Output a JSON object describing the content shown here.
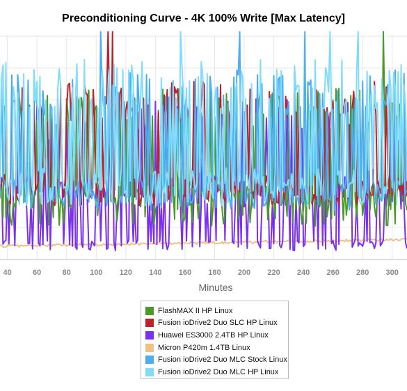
{
  "chart_data": {
    "type": "line",
    "title": "Preconditioning Curve - 4K 100% Write [Max Latency]",
    "xlabel": "Minutes",
    "ylabel": "",
    "xlim": [
      35,
      310
    ],
    "x_ticks": [
      40,
      60,
      80,
      100,
      120,
      140,
      160,
      180,
      200,
      220,
      240,
      260,
      280,
      300
    ],
    "grid": true,
    "legend_position": "bottom",
    "series": [
      {
        "name": "FlashMAX II HP Linux",
        "color": "#4a9a28",
        "style": "high-spikes",
        "base": 0.28,
        "low": 0.15,
        "high": 0.78
      },
      {
        "name": "Fusion ioDrive2 Duo SLC HP Linux",
        "color": "#c0202a",
        "style": "high-spikes",
        "base": 0.33,
        "low": 0.24,
        "high": 0.8
      },
      {
        "name": "Huawei ES3000 2.4TB HP Linux",
        "color": "#7b2ff0",
        "style": "low-spikes",
        "base": 0.3,
        "low": 0.04,
        "high": 0.72
      },
      {
        "name": "Micron P420m 1.4TB Linux",
        "color": "#f0c088",
        "style": "flat",
        "base": 0.06,
        "end": 0.09
      },
      {
        "name": "Fusion ioDrive2 Duo MLC Stock Linux",
        "color": "#4aaef0",
        "style": "high-spikes",
        "base": 0.32,
        "low": 0.22,
        "high": 0.85
      },
      {
        "name": "Fusion ioDrive2 Duo MLC HP Linux",
        "color": "#80dcfa",
        "style": "high-spikes",
        "base": 0.35,
        "low": 0.24,
        "high": 0.9
      }
    ]
  }
}
